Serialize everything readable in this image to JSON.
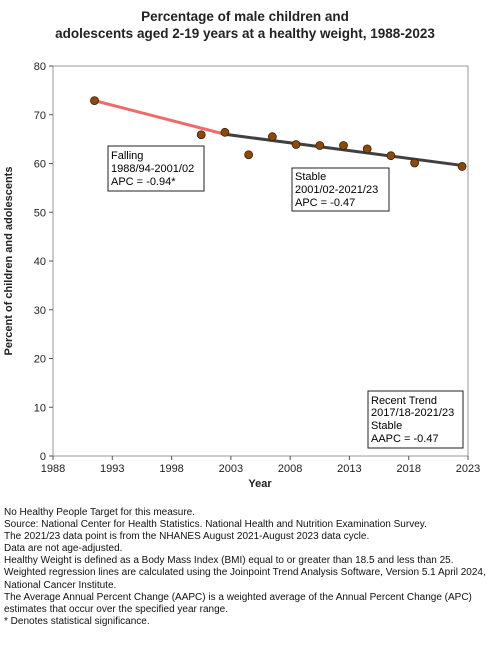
{
  "chart_data": {
    "type": "scatter",
    "title_lines": [
      "Percentage of male children and",
      "adolescents aged 2-19 years at a healthy weight, 1988-2023"
    ],
    "xlabel": "Year",
    "ylabel": "Percent of children and adolescents",
    "xlim": [
      1988,
      2023
    ],
    "ylim": [
      0,
      80
    ],
    "xticks": [
      1988,
      1993,
      1998,
      2003,
      2008,
      2013,
      2018,
      2023
    ],
    "yticks": [
      0,
      10,
      20,
      30,
      40,
      50,
      60,
      70,
      80
    ],
    "grid": false,
    "points": [
      {
        "x": 1991.5,
        "y": 72.9
      },
      {
        "x": 2000.5,
        "y": 65.9
      },
      {
        "x": 2002.5,
        "y": 66.4
      },
      {
        "x": 2004.5,
        "y": 61.8
      },
      {
        "x": 2006.5,
        "y": 65.5
      },
      {
        "x": 2008.5,
        "y": 63.9
      },
      {
        "x": 2010.5,
        "y": 63.7
      },
      {
        "x": 2012.5,
        "y": 63.7
      },
      {
        "x": 2014.5,
        "y": 63.0
      },
      {
        "x": 2016.5,
        "y": 61.6
      },
      {
        "x": 2018.5,
        "y": 60.1
      },
      {
        "x": 2022.5,
        "y": 59.4
      }
    ],
    "trend_lines": [
      {
        "x": [
          1991.5,
          2002.5
        ],
        "y": [
          72.9,
          66.0
        ],
        "color": "#f06a6a"
      },
      {
        "x": [
          2002.5,
          2022.5
        ],
        "y": [
          66.0,
          59.6
        ],
        "color": "#404040"
      }
    ],
    "point_color": "#8b4a0b",
    "annotations": [
      {
        "lines": [
          "Falling",
          "1988/94-2001/02",
          "APC = -0.94*"
        ]
      },
      {
        "lines": [
          "Stable",
          "2001/02-2021/23",
          "APC = -0.47"
        ]
      },
      {
        "lines": [
          "Recent Trend",
          "2017/18-2021/23",
          "Stable",
          "AAPC = -0.47"
        ]
      }
    ]
  },
  "footnotes": [
    "No Healthy People Target for this measure.",
    "Source: National Center for Health Statistics. National Health and Nutrition Examination Survey.",
    "The 2021/23 data point is from the NHANES August 2021-August 2023 data cycle.",
    "Data are not age-adjusted.",
    "Healthy Weight is defined as a Body Mass Index (BMI) equal to or greater than 18.5 and less than 25.",
    "Weighted regression lines are calculated using the Joinpoint Trend Analysis Software, Version 5.1 April 2024, National Cancer Institute.",
    "The Average Annual Percent Change (AAPC) is a weighted average of the Annual Percent Change (APC) estimates that occur over the specified year range.",
    "* Denotes statistical significance."
  ]
}
